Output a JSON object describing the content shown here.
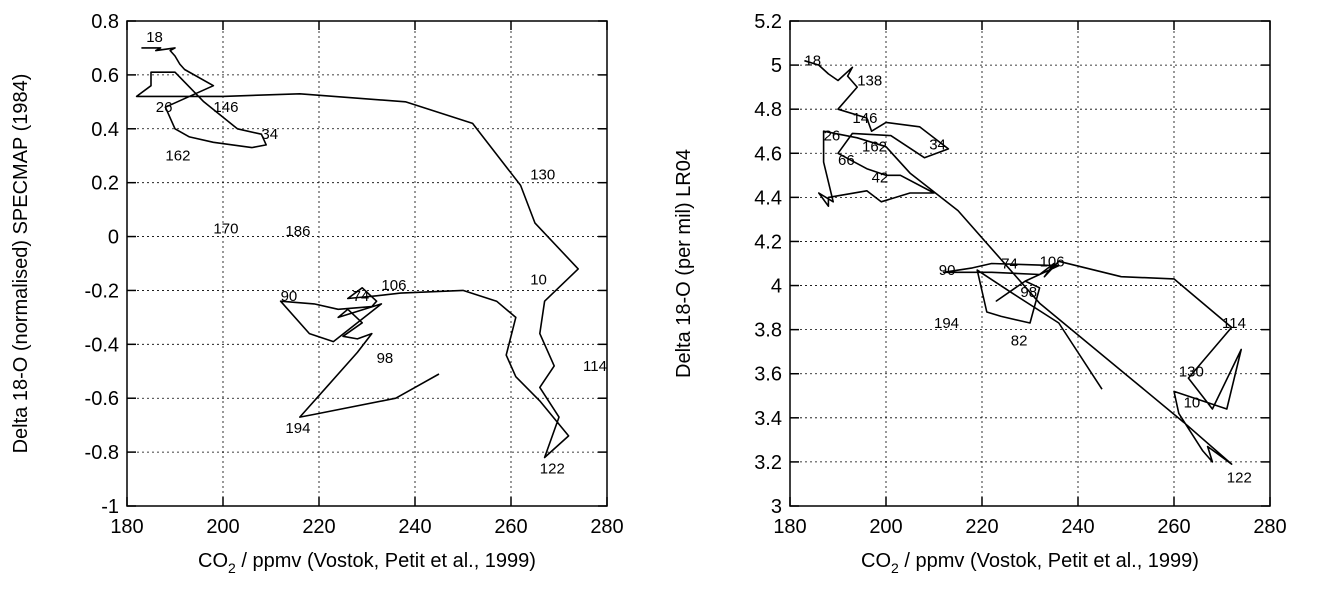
{
  "chart_data": [
    {
      "type": "line",
      "xlabel_main": "CO",
      "xlabel_sub": "2",
      "xlabel_rest": " / ppmv  (Vostok, Petit et al., 1999)",
      "ylabel": "Delta 18-O (normalised) SPECMAP (1984)",
      "xlim": [
        180,
        280
      ],
      "ylim": [
        -1,
        0.8
      ],
      "grid": true,
      "x_ticks": [
        180,
        200,
        220,
        240,
        260,
        280
      ],
      "x_tick_labels": [
        "180",
        "200",
        "220",
        "240",
        "260",
        "280"
      ],
      "y_ticks": [
        -1,
        -0.8,
        -0.6,
        -0.4,
        -0.2,
        0,
        0.2,
        0.4,
        0.6,
        0.8
      ],
      "y_tick_labels": [
        "-1",
        "-0.8",
        "-0.6",
        "-0.4",
        "-0.2",
        "0",
        "0.2",
        "0.4",
        "0.6",
        "0.8"
      ],
      "series": [
        {
          "x": [
            245,
            236,
            219,
            216,
            222,
            228,
            231,
            228,
            225,
            229,
            226,
            224,
            233,
            223,
            218,
            212,
            212,
            219,
            224,
            231,
            232,
            229,
            226,
            232,
            237,
            250,
            257,
            261,
            259,
            261,
            266,
            272,
            267,
            270,
            266,
            269,
            266,
            267,
            274,
            265,
            262,
            252,
            238,
            216,
            200,
            190,
            182,
            185,
            185,
            190,
            196,
            203,
            208,
            209,
            206,
            198,
            193,
            190,
            188,
            198,
            192,
            191,
            190,
            189,
            190,
            186,
            187,
            183,
            183
          ],
          "y": [
            -0.51,
            -0.6,
            -0.66,
            -0.67,
            -0.55,
            -0.43,
            -0.36,
            -0.38,
            -0.37,
            -0.32,
            -0.27,
            -0.3,
            -0.25,
            -0.39,
            -0.36,
            -0.24,
            -0.24,
            -0.25,
            -0.27,
            -0.26,
            -0.24,
            -0.19,
            -0.23,
            -0.22,
            -0.21,
            -0.2,
            -0.24,
            -0.3,
            -0.44,
            -0.52,
            -0.61,
            -0.74,
            -0.82,
            -0.67,
            -0.56,
            -0.48,
            -0.36,
            -0.24,
            -0.12,
            0.05,
            0.19,
            0.42,
            0.5,
            0.53,
            0.52,
            0.52,
            0.52,
            0.56,
            0.61,
            0.61,
            0.5,
            0.4,
            0.38,
            0.34,
            0.33,
            0.35,
            0.37,
            0.4,
            0.48,
            0.56,
            0.62,
            0.64,
            0.67,
            0.69,
            0.7,
            0.69,
            0.7,
            0.7,
            0.7
          ]
        }
      ],
      "annotations": [
        {
          "text": "18",
          "x": 184,
          "y": 0.74
        },
        {
          "text": "26",
          "x": 186,
          "y": 0.48
        },
        {
          "text": "146",
          "x": 198,
          "y": 0.48
        },
        {
          "text": "34",
          "x": 208,
          "y": 0.38
        },
        {
          "text": "162",
          "x": 188,
          "y": 0.3
        },
        {
          "text": "130",
          "x": 264,
          "y": 0.23
        },
        {
          "text": "170",
          "x": 198,
          "y": 0.03
        },
        {
          "text": "186",
          "x": 213,
          "y": 0.02
        },
        {
          "text": "10",
          "x": 264,
          "y": -0.16
        },
        {
          "text": "90",
          "x": 212,
          "y": -0.22
        },
        {
          "text": "74",
          "x": 227,
          "y": -0.22
        },
        {
          "text": "106",
          "x": 233,
          "y": -0.18
        },
        {
          "text": "98",
          "x": 232,
          "y": -0.45
        },
        {
          "text": "114",
          "x": 275,
          "y": -0.48
        },
        {
          "text": "194",
          "x": 213,
          "y": -0.71
        },
        {
          "text": "122",
          "x": 266,
          "y": -0.86
        }
      ]
    },
    {
      "type": "line",
      "xlabel_main": "CO",
      "xlabel_sub": "2",
      "xlabel_rest": " / ppmv  (Vostok, Petit et al., 1999)",
      "ylabel": "Delta 18-O (per mil) LR04",
      "xlim": [
        180,
        280
      ],
      "ylim": [
        3,
        5.2
      ],
      "grid": true,
      "x_ticks": [
        180,
        200,
        220,
        240,
        260,
        280
      ],
      "x_tick_labels": [
        "180",
        "200",
        "220",
        "240",
        "260",
        "280"
      ],
      "y_ticks": [
        3,
        3.2,
        3.4,
        3.6,
        3.8,
        4,
        4.2,
        4.4,
        4.6,
        4.8,
        5,
        5.2
      ],
      "y_tick_labels": [
        "3",
        "3.2",
        "3.4",
        "3.6",
        "3.8",
        "4",
        "4.2",
        "4.4",
        "4.6",
        "4.8",
        "5",
        "5.2"
      ],
      "series": [
        {
          "x": [
            245,
            236,
            226,
            219,
            221,
            224,
            230,
            232,
            229,
            223,
            229,
            236,
            222,
            218,
            212,
            222,
            232,
            235,
            233,
            236,
            249,
            260,
            272,
            263,
            268,
            274,
            271,
            260,
            261,
            266,
            268,
            267,
            272,
            262,
            232,
            215,
            205,
            200,
            194,
            187,
            187,
            189,
            186,
            188,
            188,
            196,
            199,
            205,
            210,
            203,
            200,
            196,
            190,
            193,
            201,
            208,
            213,
            207,
            200,
            197,
            196,
            190,
            194,
            192,
            193,
            190,
            188,
            186,
            183,
            183
          ],
          "y": [
            3.53,
            3.83,
            3.97,
            4.07,
            3.88,
            3.86,
            3.83,
            3.99,
            4.02,
            3.93,
            4.02,
            4.09,
            4.1,
            4.08,
            4.06,
            4.06,
            4.05,
            4.1,
            4.04,
            4.11,
            4.04,
            4.03,
            3.81,
            3.58,
            3.44,
            3.71,
            3.44,
            3.52,
            3.42,
            3.25,
            3.2,
            3.27,
            3.19,
            3.38,
            3.92,
            4.34,
            4.51,
            4.63,
            4.67,
            4.7,
            4.56,
            4.38,
            4.42,
            4.36,
            4.4,
            4.43,
            4.38,
            4.42,
            4.42,
            4.5,
            4.5,
            4.53,
            4.6,
            4.69,
            4.68,
            4.58,
            4.62,
            4.72,
            4.74,
            4.7,
            4.76,
            4.8,
            4.9,
            4.95,
            4.99,
            4.93,
            4.96,
            5.0,
            5.02,
            5.02
          ]
        }
      ],
      "annotations": [
        {
          "text": "18",
          "x": 183,
          "y": 5.02
        },
        {
          "text": "138",
          "x": 194,
          "y": 4.93
        },
        {
          "text": "146",
          "x": 193,
          "y": 4.76
        },
        {
          "text": "26",
          "x": 187,
          "y": 4.68
        },
        {
          "text": "162",
          "x": 195,
          "y": 4.63
        },
        {
          "text": "34",
          "x": 209,
          "y": 4.64
        },
        {
          "text": "66",
          "x": 190,
          "y": 4.57
        },
        {
          "text": "42",
          "x": 197,
          "y": 4.49
        },
        {
          "text": "74",
          "x": 224,
          "y": 4.1
        },
        {
          "text": "106",
          "x": 232,
          "y": 4.11
        },
        {
          "text": "90",
          "x": 211,
          "y": 4.07
        },
        {
          "text": "98",
          "x": 228,
          "y": 3.97
        },
        {
          "text": "114",
          "x": 270,
          "y": 3.83
        },
        {
          "text": "194",
          "x": 210,
          "y": 3.83
        },
        {
          "text": "82",
          "x": 226,
          "y": 3.75
        },
        {
          "text": "130",
          "x": 261,
          "y": 3.61
        },
        {
          "text": "10",
          "x": 262,
          "y": 3.47
        },
        {
          "text": "122",
          "x": 271,
          "y": 3.13
        }
      ]
    }
  ]
}
